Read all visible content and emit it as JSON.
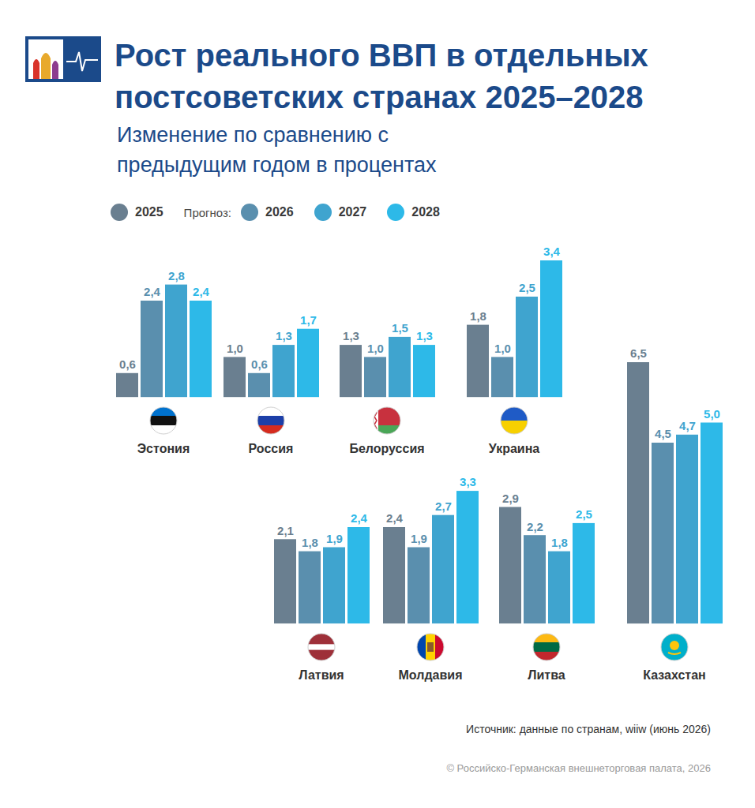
{
  "title": "Рост реального ВВП в отдельных постсоветских странах 2025–2028",
  "subtitle": "Изменение по сравнению с предыдущим годом в процентах",
  "forecast_label": "Прогноз:",
  "source": "Источник: данные по странам, wiiw (июнь 2026)",
  "copyright": "© Российско-Германская внешнеторговая палата, 2026",
  "chart_data": [
    {
      "type": "bar",
      "title": "Эстония",
      "categories": [
        "2025",
        "2026",
        "2027",
        "2028"
      ],
      "values": [
        0.6,
        2.4,
        2.8,
        2.4
      ],
      "value_labels": [
        "0,6",
        "2,4",
        "2,8",
        "2,4"
      ],
      "colors": [
        "#6a7f90",
        "#5a8fae",
        "#3fa4cf",
        "#2db9e8"
      ],
      "ylim": [
        0,
        3.4
      ],
      "yticks": [],
      "data_labels": true,
      "tick_labels": false,
      "legend": "top"
    },
    {
      "type": "bar",
      "title": "Россия",
      "categories": [
        "2025",
        "2026",
        "2027",
        "2028"
      ],
      "values": [
        1.0,
        0.6,
        1.3,
        1.7
      ],
      "value_labels": [
        "1,0",
        "0,6",
        "1,3",
        "1,7"
      ],
      "colors": [
        "#6a7f90",
        "#5a8fae",
        "#3fa4cf",
        "#2db9e8"
      ],
      "ylim": [
        0,
        3.4
      ],
      "yticks": [],
      "data_labels": true,
      "tick_labels": false
    },
    {
      "type": "bar",
      "title": "Белоруссия",
      "categories": [
        "2025",
        "2026",
        "2027",
        "2028"
      ],
      "values": [
        1.3,
        1.0,
        1.5,
        1.3
      ],
      "value_labels": [
        "1,3",
        "1,0",
        "1,5",
        "1,3"
      ],
      "colors": [
        "#6a7f90",
        "#5a8fae",
        "#3fa4cf",
        "#2db9e8"
      ],
      "ylim": [
        0,
        3.4
      ],
      "yticks": [],
      "data_labels": true,
      "tick_labels": false
    },
    {
      "type": "bar",
      "title": "Украина",
      "categories": [
        "2025",
        "2026",
        "2027",
        "2028"
      ],
      "values": [
        1.8,
        1.0,
        2.5,
        3.4
      ],
      "value_labels": [
        "1,8",
        "1,0",
        "2,5",
        "3,4"
      ],
      "colors": [
        "#6a7f90",
        "#5a8fae",
        "#3fa4cf",
        "#2db9e8"
      ],
      "ylim": [
        0,
        3.4
      ],
      "yticks": [],
      "data_labels": true,
      "tick_labels": false
    },
    {
      "type": "bar",
      "title": "Латвия",
      "categories": [
        "2025",
        "2026",
        "2027",
        "2028"
      ],
      "values": [
        2.1,
        1.8,
        1.9,
        2.4
      ],
      "value_labels": [
        "2,1",
        "1,8",
        "1,9",
        "2,4"
      ],
      "colors": [
        "#6a7f90",
        "#5a8fae",
        "#3fa4cf",
        "#2db9e8"
      ],
      "ylim": [
        0,
        3.4
      ],
      "yticks": [],
      "data_labels": true,
      "tick_labels": false
    },
    {
      "type": "bar",
      "title": "Молдавия",
      "categories": [
        "2025",
        "2026",
        "2027",
        "2028"
      ],
      "values": [
        2.4,
        1.9,
        2.7,
        3.3
      ],
      "value_labels": [
        "2,4",
        "1,9",
        "2,7",
        "3,3"
      ],
      "colors": [
        "#6a7f90",
        "#5a8fae",
        "#3fa4cf",
        "#2db9e8"
      ],
      "ylim": [
        0,
        3.4
      ],
      "yticks": [],
      "data_labels": true,
      "tick_labels": false
    },
    {
      "type": "bar",
      "title": "Литва",
      "categories": [
        "2025",
        "2026",
        "2027",
        "2028"
      ],
      "values": [
        2.9,
        2.2,
        1.8,
        2.5
      ],
      "value_labels": [
        "2,9",
        "2,2",
        "1,8",
        "2,5"
      ],
      "colors": [
        "#6a7f90",
        "#5a8fae",
        "#3fa4cf",
        "#2db9e8"
      ],
      "ylim": [
        0,
        3.4
      ],
      "yticks": [],
      "data_labels": true,
      "tick_labels": false
    },
    {
      "type": "bar",
      "title": "Казахстан",
      "categories": [
        "2025",
        "2026",
        "2027",
        "2028"
      ],
      "values": [
        6.5,
        4.5,
        4.7,
        5.0
      ],
      "value_labels": [
        "6,5",
        "4,5",
        "4,7",
        "5,0"
      ],
      "colors": [
        "#6a7f90",
        "#5a8fae",
        "#3fa4cf",
        "#2db9e8"
      ],
      "ylim": [
        0,
        6.5
      ],
      "yticks": [],
      "data_labels": true,
      "tick_labels": false
    }
  ]
}
